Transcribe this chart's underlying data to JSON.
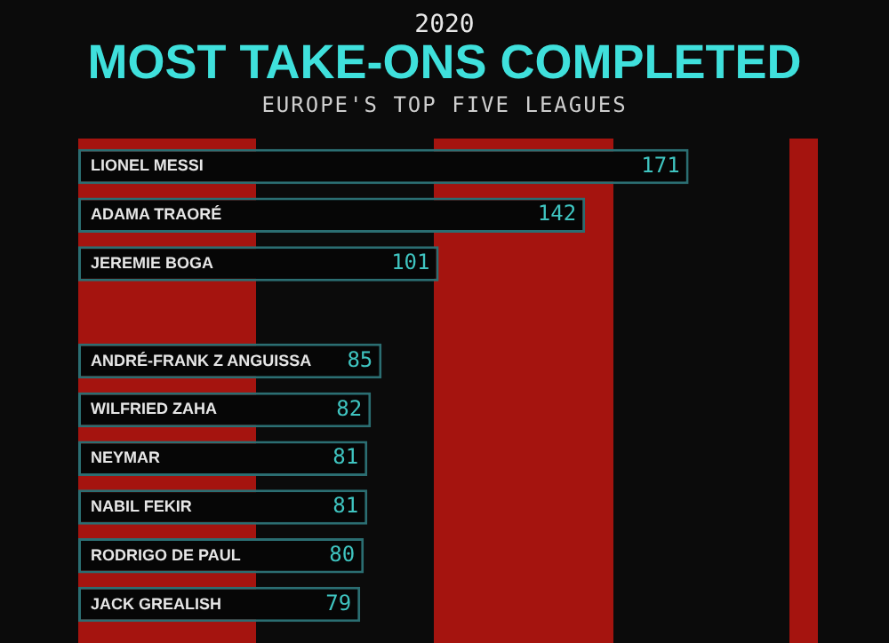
{
  "chart_data": {
    "type": "bar",
    "orientation": "horizontal",
    "title": "MOST TAKE-ONS COMPLETED",
    "subtitle": "EUROPE'S TOP FIVE LEAGUES",
    "annotations": [
      "2020"
    ],
    "categories": [
      "LIONEL MESSI",
      "ADAMA TRAORÉ",
      "JEREMIE BOGA",
      null,
      "ANDRÉ-FRANK Z ANGUISSA",
      "WILFRIED ZAHA",
      "NEYMAR",
      "NABIL FEKIR",
      "RODRIGO DE PAUL",
      "JACK GREALISH"
    ],
    "values": [
      171,
      142,
      101,
      null,
      85,
      82,
      81,
      81,
      80,
      79
    ],
    "value_labels": [
      "171",
      "142",
      "101",
      null,
      "85",
      "82",
      "81",
      "81",
      "80",
      "79"
    ],
    "color": "#060606"
  }
}
